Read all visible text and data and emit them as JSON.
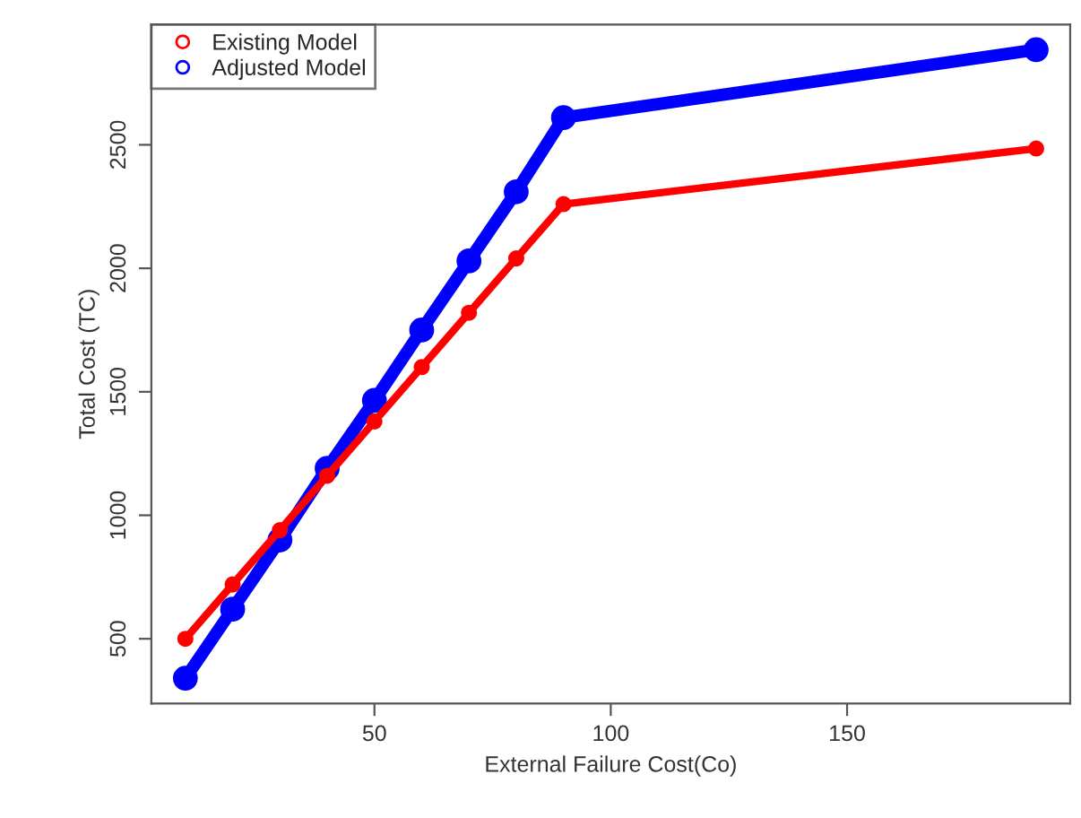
{
  "chart_data": {
    "type": "line",
    "xlabel": "External Failure Cost(Co)",
    "ylabel": "Total Cost (TC)",
    "x": [
      10,
      20,
      30,
      40,
      50,
      60,
      70,
      80,
      90,
      190
    ],
    "series": [
      {
        "name": "Existing Model",
        "color": "#ff0000",
        "values": [
          500,
          720,
          940,
          1160,
          1380,
          1600,
          1820,
          2040,
          2260,
          2485
        ]
      },
      {
        "name": "Adjusted Model",
        "color": "#0000ff",
        "values": [
          340,
          620,
          900,
          1190,
          1465,
          1750,
          2030,
          2310,
          2610,
          2885
        ]
      }
    ],
    "xlim": [
      2.8,
      197.2
    ],
    "xticks": [
      50,
      100,
      150
    ],
    "ylim": [
      238,
      2987
    ],
    "yticks": [
      500,
      1000,
      1500,
      2000,
      2500
    ],
    "marker": "circle",
    "line_style": "solid",
    "legend": "top left",
    "grid": false
  }
}
